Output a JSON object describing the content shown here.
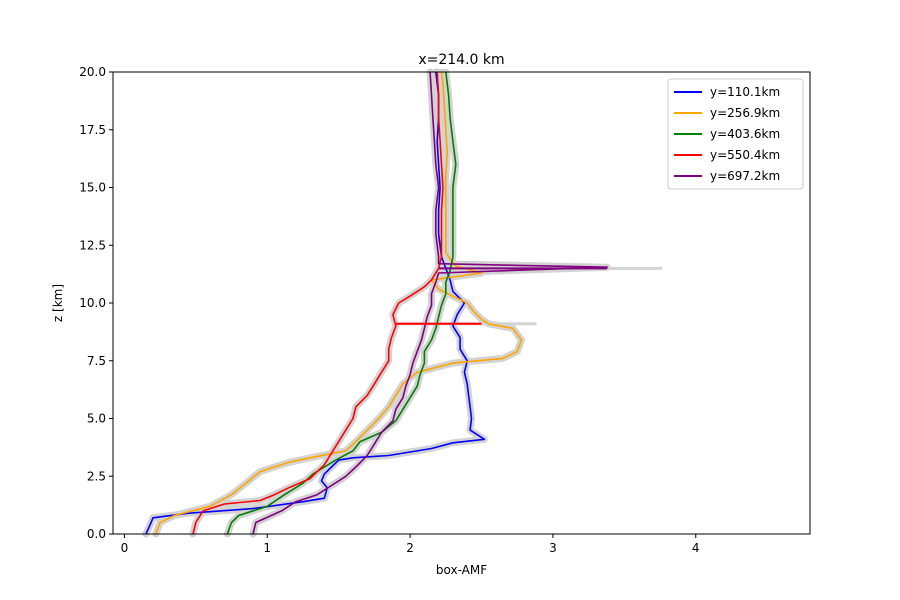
{
  "chart_data": {
    "type": "line",
    "title": "x=214.0 km",
    "xlabel": "box-AMF",
    "ylabel": "z [km]",
    "xlim": [
      -0.08,
      4.8
    ],
    "ylim": [
      0,
      20
    ],
    "xticks": [
      0,
      1,
      2,
      3,
      4
    ],
    "xtick_labels": [
      "0",
      "1",
      "2",
      "3",
      "4"
    ],
    "yticks": [
      0,
      2.5,
      5,
      7.5,
      10,
      12.5,
      15,
      17.5,
      20
    ],
    "ytick_labels": [
      "0.0",
      "2.5",
      "5.0",
      "7.5",
      "10.0",
      "12.5",
      "15.0",
      "17.5",
      "20.0"
    ],
    "grid": false,
    "legend_position": "top-right",
    "uncertainty_band_color": "#d3d3d3",
    "series": [
      {
        "name": "y=110.1km",
        "color": "#0000ff",
        "points": [
          [
            0.15,
            0
          ],
          [
            0.18,
            0.4
          ],
          [
            0.2,
            0.7
          ],
          [
            0.45,
            0.9
          ],
          [
            0.9,
            1.1
          ],
          [
            1.25,
            1.4
          ],
          [
            1.4,
            1.55
          ],
          [
            1.42,
            2.0
          ],
          [
            1.38,
            2.3
          ],
          [
            1.4,
            2.6
          ],
          [
            1.45,
            2.9
          ],
          [
            1.5,
            3.2
          ],
          [
            1.6,
            3.3
          ],
          [
            1.85,
            3.4
          ],
          [
            2.15,
            3.7
          ],
          [
            2.3,
            3.95
          ],
          [
            2.52,
            4.1
          ],
          [
            2.47,
            4.3
          ],
          [
            2.42,
            4.5
          ],
          [
            2.43,
            5.0
          ],
          [
            2.42,
            5.5
          ],
          [
            2.41,
            6.0
          ],
          [
            2.4,
            6.5
          ],
          [
            2.38,
            7.0
          ],
          [
            2.4,
            7.5
          ],
          [
            2.35,
            8.0
          ],
          [
            2.35,
            8.5
          ],
          [
            2.3,
            9.0
          ],
          [
            2.33,
            9.5
          ],
          [
            2.38,
            10.0
          ],
          [
            2.3,
            10.5
          ],
          [
            2.28,
            11.0
          ],
          [
            2.25,
            11.5
          ],
          [
            2.22,
            12.0
          ],
          [
            2.2,
            13.0
          ],
          [
            2.2,
            14.0
          ],
          [
            2.21,
            15.0
          ],
          [
            2.2,
            16.0
          ],
          [
            2.19,
            17.0
          ],
          [
            2.2,
            18.0
          ],
          [
            2.2,
            19.0
          ],
          [
            2.18,
            20.0
          ]
        ]
      },
      {
        "name": "y=256.9km",
        "color": "#ffa500",
        "points": [
          [
            0.22,
            0
          ],
          [
            0.25,
            0.5
          ],
          [
            0.35,
            0.8
          ],
          [
            0.6,
            1.2
          ],
          [
            0.75,
            1.7
          ],
          [
            0.85,
            2.2
          ],
          [
            0.95,
            2.7
          ],
          [
            1.15,
            3.1
          ],
          [
            1.3,
            3.3
          ],
          [
            1.55,
            3.6
          ],
          [
            1.62,
            4.0
          ],
          [
            1.7,
            4.5
          ],
          [
            1.78,
            5.0
          ],
          [
            1.85,
            5.5
          ],
          [
            1.9,
            6.0
          ],
          [
            1.95,
            6.5
          ],
          [
            2.05,
            7.0
          ],
          [
            2.3,
            7.4
          ],
          [
            2.65,
            7.6
          ],
          [
            2.75,
            7.9
          ],
          [
            2.78,
            8.4
          ],
          [
            2.72,
            8.9
          ],
          [
            2.55,
            9.1
          ],
          [
            2.5,
            9.3
          ],
          [
            2.45,
            9.6
          ],
          [
            2.4,
            10.0
          ],
          [
            2.3,
            10.3
          ],
          [
            2.2,
            10.6
          ],
          [
            2.15,
            11.0
          ],
          [
            2.5,
            11.3
          ],
          [
            2.32,
            11.6
          ],
          [
            2.28,
            11.9
          ],
          [
            2.25,
            12.2
          ],
          [
            2.25,
            12.5
          ],
          [
            2.25,
            13.5
          ],
          [
            2.25,
            14.5
          ],
          [
            2.25,
            15.5
          ],
          [
            2.26,
            16.5
          ],
          [
            2.25,
            17.5
          ],
          [
            2.24,
            18.5
          ],
          [
            2.23,
            19.5
          ],
          [
            2.22,
            20.0
          ]
        ]
      },
      {
        "name": "y=403.6km",
        "color": "#008000",
        "points": [
          [
            0.72,
            0
          ],
          [
            0.75,
            0.5
          ],
          [
            0.8,
            0.8
          ],
          [
            1.0,
            1.2
          ],
          [
            1.12,
            1.7
          ],
          [
            1.25,
            2.2
          ],
          [
            1.32,
            2.6
          ],
          [
            1.4,
            2.9
          ],
          [
            1.48,
            3.2
          ],
          [
            1.6,
            3.6
          ],
          [
            1.65,
            4.0
          ],
          [
            1.8,
            4.4
          ],
          [
            1.9,
            4.9
          ],
          [
            1.95,
            5.4
          ],
          [
            2.0,
            5.9
          ],
          [
            2.05,
            6.4
          ],
          [
            2.07,
            6.9
          ],
          [
            2.1,
            7.4
          ],
          [
            2.1,
            7.9
          ],
          [
            2.15,
            8.4
          ],
          [
            2.18,
            8.9
          ],
          [
            2.2,
            9.4
          ],
          [
            2.22,
            9.9
          ],
          [
            2.25,
            10.4
          ],
          [
            2.25,
            10.9
          ],
          [
            2.28,
            11.4
          ],
          [
            2.3,
            12.0
          ],
          [
            2.3,
            13.0
          ],
          [
            2.3,
            14.0
          ],
          [
            2.3,
            15.0
          ],
          [
            2.32,
            16.0
          ],
          [
            2.3,
            17.0
          ],
          [
            2.28,
            18.0
          ],
          [
            2.27,
            19.0
          ],
          [
            2.25,
            20.0
          ]
        ]
      },
      {
        "name": "y=550.4km",
        "color": "#ff0000",
        "points": [
          [
            0.48,
            0
          ],
          [
            0.5,
            0.5
          ],
          [
            0.55,
            1.0
          ],
          [
            0.7,
            1.3
          ],
          [
            0.95,
            1.45
          ],
          [
            1.05,
            1.7
          ],
          [
            1.15,
            2.0
          ],
          [
            1.3,
            2.4
          ],
          [
            1.35,
            2.7
          ],
          [
            1.4,
            3.0
          ],
          [
            1.45,
            3.5
          ],
          [
            1.5,
            4.0
          ],
          [
            1.55,
            4.5
          ],
          [
            1.6,
            5.0
          ],
          [
            1.62,
            5.5
          ],
          [
            1.7,
            6.0
          ],
          [
            1.75,
            6.5
          ],
          [
            1.8,
            7.0
          ],
          [
            1.85,
            7.5
          ],
          [
            1.85,
            8.0
          ],
          [
            1.87,
            8.5
          ],
          [
            1.9,
            9.0
          ],
          [
            1.88,
            9.5
          ],
          [
            1.92,
            10.0
          ],
          [
            2.0,
            10.3
          ],
          [
            2.1,
            10.7
          ],
          [
            2.15,
            11.0
          ],
          [
            2.2,
            11.5
          ],
          [
            2.22,
            12.0
          ],
          [
            2.22,
            13.0
          ],
          [
            2.22,
            14.0
          ],
          [
            2.23,
            15.0
          ],
          [
            2.22,
            16.0
          ],
          [
            2.21,
            17.0
          ],
          [
            2.2,
            18.0
          ],
          [
            2.2,
            19.0
          ],
          [
            2.19,
            20.0
          ]
        ]
      },
      {
        "name": "y=697.2km",
        "color": "#800080",
        "points": [
          [
            0.9,
            0
          ],
          [
            0.92,
            0.5
          ],
          [
            1.1,
            1.0
          ],
          [
            1.2,
            1.4
          ],
          [
            1.35,
            1.7
          ],
          [
            1.45,
            2.1
          ],
          [
            1.55,
            2.5
          ],
          [
            1.62,
            2.9
          ],
          [
            1.7,
            3.4
          ],
          [
            1.75,
            3.9
          ],
          [
            1.8,
            4.4
          ],
          [
            1.88,
            4.9
          ],
          [
            1.9,
            5.4
          ],
          [
            1.95,
            5.9
          ],
          [
            1.97,
            6.4
          ],
          [
            2.0,
            6.9
          ],
          [
            2.02,
            7.4
          ],
          [
            2.05,
            7.9
          ],
          [
            2.08,
            8.4
          ],
          [
            2.1,
            8.9
          ],
          [
            2.12,
            9.4
          ],
          [
            2.15,
            9.9
          ],
          [
            2.15,
            10.4
          ],
          [
            2.18,
            10.9
          ],
          [
            2.2,
            11.3
          ],
          [
            3.38,
            11.55
          ],
          [
            2.2,
            11.7
          ],
          [
            2.2,
            12.0
          ],
          [
            2.18,
            13.0
          ],
          [
            2.18,
            14.0
          ],
          [
            2.2,
            15.0
          ],
          [
            2.18,
            16.0
          ],
          [
            2.17,
            17.0
          ],
          [
            2.16,
            18.0
          ],
          [
            2.15,
            19.0
          ],
          [
            2.14,
            20.0
          ]
        ]
      }
    ],
    "spikes": [
      {
        "series": "y=550.4km",
        "y": 9.1,
        "x_from": 1.9,
        "x_to": 2.5
      },
      {
        "series": "y=697.2km",
        "y": 11.5,
        "x_from": 2.2,
        "x_to": 3.38
      }
    ]
  }
}
